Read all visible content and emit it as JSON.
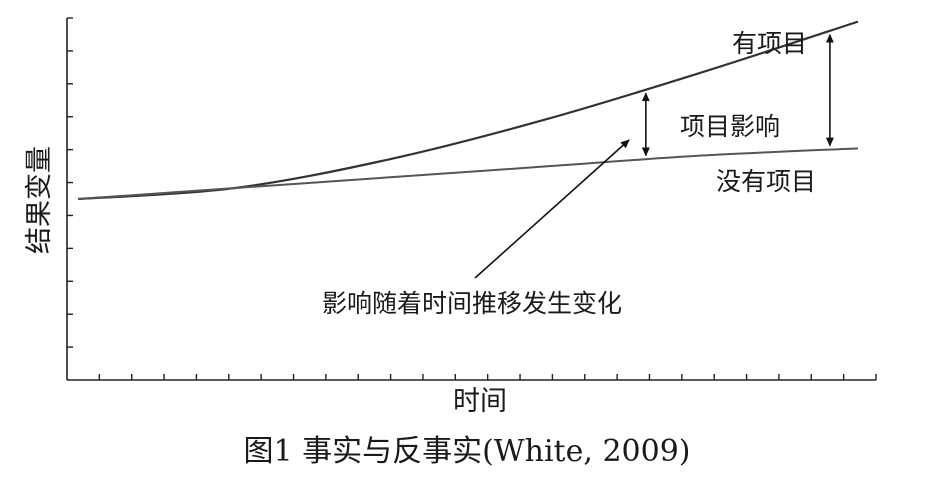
{
  "chart_data": {
    "type": "line",
    "title": "",
    "xlabel": "时间",
    "ylabel": "结果变量",
    "x_tick_count": 25,
    "y_tick_count": 11,
    "xlim": [
      0,
      25
    ],
    "ylim": [
      0,
      10
    ],
    "series": [
      {
        "name": "有项目",
        "x": [
          0,
          5,
          10,
          15,
          20,
          25
        ],
        "y": [
          5.0,
          5.3,
          6.1,
          7.2,
          8.5,
          9.9
        ]
      },
      {
        "name": "没有项目",
        "x": [
          0,
          5,
          10,
          15,
          20,
          25
        ],
        "y": [
          5.0,
          5.3,
          5.6,
          5.9,
          6.2,
          6.4
        ]
      }
    ],
    "annotations": [
      {
        "text": "项目影响"
      },
      {
        "text": "影响随着时间推移发生变化"
      }
    ],
    "grid": false
  },
  "caption": "图1 事实与反事实(White, 2009)"
}
